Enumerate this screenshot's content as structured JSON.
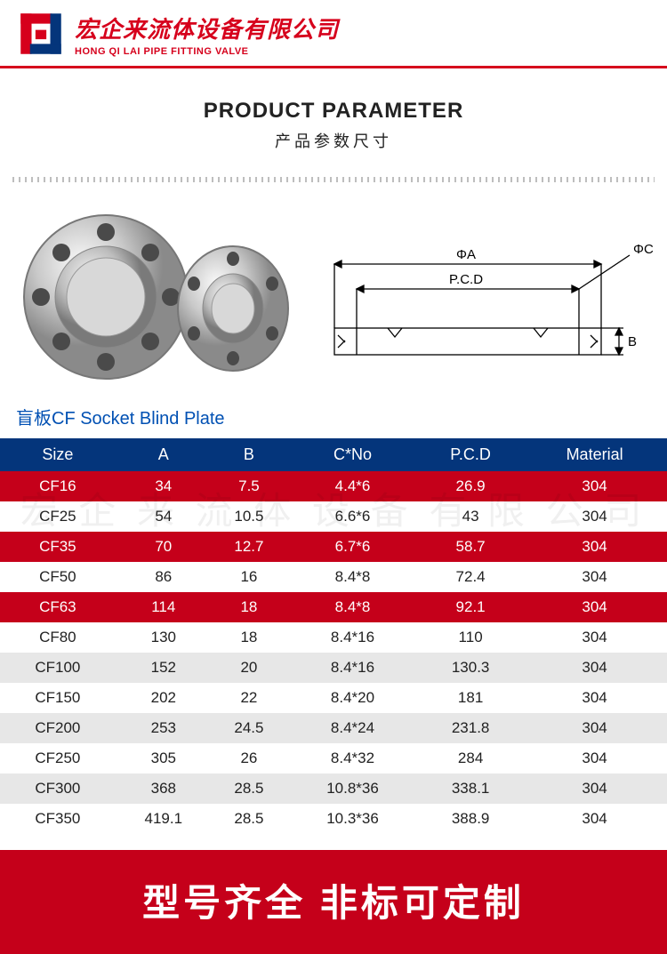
{
  "brand": {
    "cn": "宏企来流体设备有限公司",
    "en": "HONG QI LAI PIPE FITTING VALVE",
    "color": "#d6001c"
  },
  "title": {
    "en": "PRODUCT PARAMETER",
    "cn": "产品参数尺寸"
  },
  "caption": "盲板CF Socket Blind Plate",
  "drawing_labels": {
    "phiA": "ΦA",
    "phiC": "ΦC",
    "pcd": "P.C.D",
    "b": "B"
  },
  "table": {
    "header_bg": "#04357b",
    "row_red_bg": "#c5001a",
    "row_gry_bg": "#e7e7e7",
    "columns": [
      "Size",
      "A",
      "B",
      "C*No",
      "P.C.D",
      "Material"
    ],
    "rows": [
      {
        "style": "r-red",
        "cells": [
          "CF16",
          "34",
          "7.5",
          "4.4*6",
          "26.9",
          "304"
        ]
      },
      {
        "style": "r-wht",
        "cells": [
          "CF25",
          "54",
          "10.5",
          "6.6*6",
          "43",
          "304"
        ]
      },
      {
        "style": "r-red",
        "cells": [
          "CF35",
          "70",
          "12.7",
          "6.7*6",
          "58.7",
          "304"
        ]
      },
      {
        "style": "r-wht",
        "cells": [
          "CF50",
          "86",
          "16",
          "8.4*8",
          "72.4",
          "304"
        ]
      },
      {
        "style": "r-red",
        "cells": [
          "CF63",
          "114",
          "18",
          "8.4*8",
          "92.1",
          "304"
        ]
      },
      {
        "style": "r-wht",
        "cells": [
          "CF80",
          "130",
          "18",
          "8.4*16",
          "110",
          "304"
        ]
      },
      {
        "style": "r-gry",
        "cells": [
          "CF100",
          "152",
          "20",
          "8.4*16",
          "130.3",
          "304"
        ]
      },
      {
        "style": "r-wht",
        "cells": [
          "CF150",
          "202",
          "22",
          "8.4*20",
          "181",
          "304"
        ]
      },
      {
        "style": "r-gry",
        "cells": [
          "CF200",
          "253",
          "24.5",
          "8.4*24",
          "231.8",
          "304"
        ]
      },
      {
        "style": "r-wht",
        "cells": [
          "CF250",
          "305",
          "26",
          "8.4*32",
          "284",
          "304"
        ]
      },
      {
        "style": "r-gry",
        "cells": [
          "CF300",
          "368",
          "28.5",
          "10.8*36",
          "338.1",
          "304"
        ]
      },
      {
        "style": "r-wht",
        "cells": [
          "CF350",
          "419.1",
          "28.5",
          "10.3*36",
          "388.9",
          "304"
        ]
      }
    ]
  },
  "watermark": "宏 企 来 流 体 设 备 有 限 公 司",
  "footer": "型号齐全 非标可定制",
  "colors": {
    "brand_red": "#c5001a",
    "brand_red2": "#d6001c",
    "nav_blue": "#04357b",
    "caption_blue": "#0050b3"
  }
}
